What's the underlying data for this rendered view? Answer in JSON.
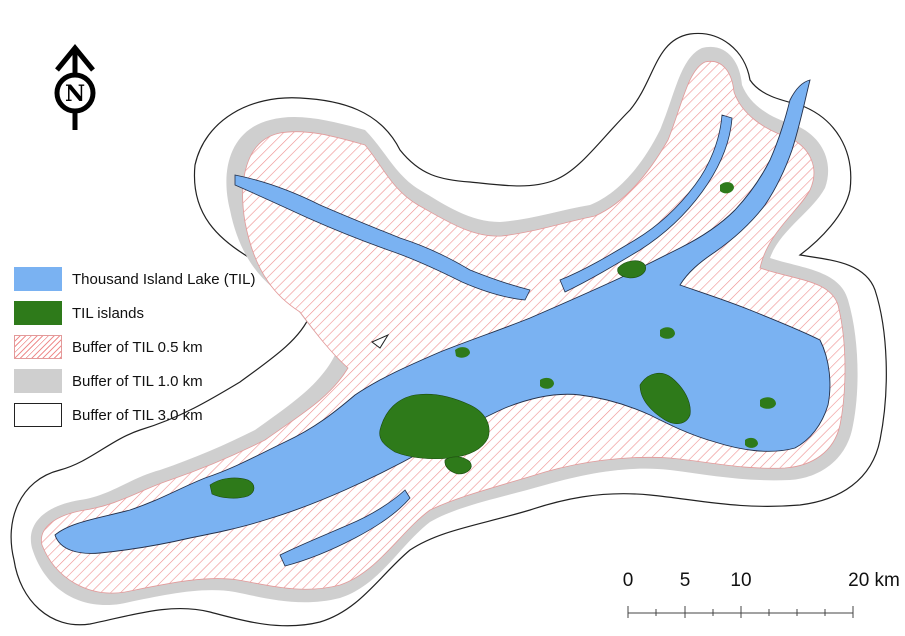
{
  "north_arrow": {
    "letter": "N",
    "icon": "north-arrow-icon"
  },
  "legend": {
    "items": [
      {
        "label": "Thousand Island Lake (TIL)",
        "color": "#7ab2f2"
      },
      {
        "label": "TIL islands",
        "color": "#2e7a1a"
      },
      {
        "label": "Buffer of TIL 0.5 km",
        "color": "#ef8f8f"
      },
      {
        "label": "Buffer of TIL 1.0 km",
        "color": "#cfcfcf"
      },
      {
        "label": "Buffer of TIL 3.0 km",
        "color": "#ffffff"
      }
    ]
  },
  "scale_bar": {
    "labels": [
      "0",
      "5",
      "10",
      "20 km"
    ]
  },
  "colors": {
    "lake": "#7ab2f2",
    "island": "#2e7a1a",
    "buffer_05_hatch": "#ef8f8f",
    "buffer_10": "#cfcfcf",
    "buffer_30_outline": "#222222"
  }
}
